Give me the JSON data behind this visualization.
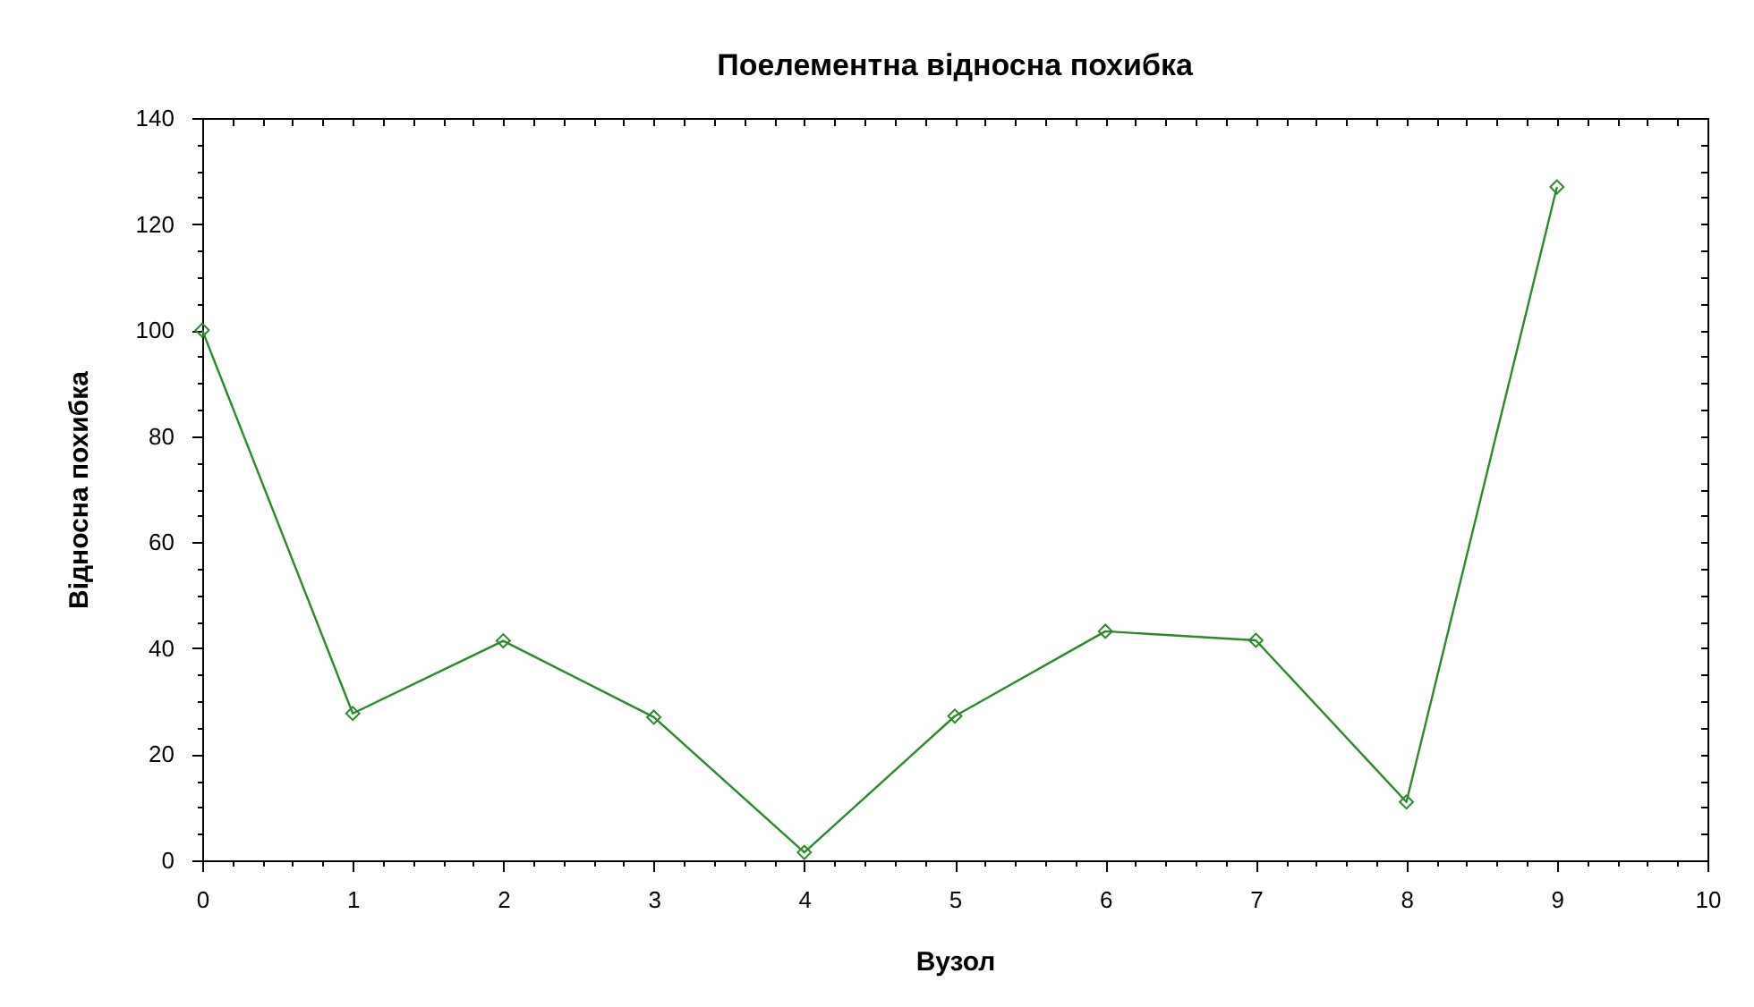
{
  "chart_data": {
    "type": "line",
    "title": "Поелементна відносна похибка",
    "xlabel": "Вузол",
    "ylabel": "Відносна похибка",
    "x": [
      0,
      1,
      2,
      3,
      4,
      5,
      6,
      7,
      8,
      9
    ],
    "values": [
      100,
      27.7,
      41.4,
      27,
      1.5,
      27.2,
      43.2,
      41.5,
      11,
      127
    ],
    "color": "#2a8a2a",
    "marker": "diamond",
    "line_style": "solid",
    "grid": false,
    "xlim": [
      0,
      10
    ],
    "ylim": [
      0,
      140
    ],
    "xticks": [
      0,
      {
        "value": 0.2,
        "label": null
      },
      {
        "value": 0.4,
        "label": null
      },
      {
        "value": 0.6,
        "label": null
      },
      {
        "value": 0.8,
        "label": null
      },
      1,
      {
        "value": 1.2,
        "label": null
      },
      {
        "value": 1.4,
        "label": null
      },
      {
        "value": 1.6,
        "label": null
      },
      {
        "value": 1.8,
        "label": null
      },
      2,
      {
        "value": 2.2,
        "label": null
      },
      {
        "value": 2.4,
        "label": null
      },
      {
        "value": 2.6,
        "label": null
      },
      {
        "value": 2.8,
        "label": null
      },
      3,
      {
        "value": 3.2,
        "label": null
      },
      {
        "value": 3.4,
        "label": null
      },
      {
        "value": 3.6,
        "label": null
      },
      {
        "value": 3.8,
        "label": null
      },
      4,
      {
        "value": 4.2,
        "label": null
      },
      {
        "value": 4.4,
        "label": null
      },
      {
        "value": 4.6,
        "label": null
      },
      {
        "value": 4.8,
        "label": null
      },
      5,
      {
        "value": 5.2,
        "label": null
      },
      {
        "value": 5.4,
        "label": null
      },
      {
        "value": 5.6,
        "label": null
      },
      {
        "value": 5.8,
        "label": null
      },
      6,
      {
        "value": 6.2,
        "label": null
      },
      {
        "value": 6.4,
        "label": null
      },
      {
        "value": 6.6,
        "label": null
      },
      {
        "value": 6.8,
        "label": null
      },
      7,
      {
        "value": 7.2,
        "label": null
      },
      {
        "value": 7.4,
        "label": null
      },
      {
        "value": 7.6,
        "label": null
      },
      {
        "value": 7.8,
        "label": null
      },
      8,
      {
        "value": 8.2,
        "label": null
      },
      {
        "value": 8.4,
        "label": null
      },
      {
        "value": 8.6,
        "label": null
      },
      {
        "value": 8.8,
        "label": null
      },
      9,
      {
        "value": 9.2,
        "label": null
      },
      {
        "value": 9.4,
        "label": null
      },
      {
        "value": 9.6,
        "label": null
      },
      {
        "value": 9.8,
        "label": null
      },
      10
    ],
    "yticks": [
      0,
      {
        "value": 5,
        "label": null
      },
      {
        "value": 10,
        "label": null
      },
      {
        "value": 15,
        "label": null
      },
      20,
      {
        "value": 25,
        "label": null
      },
      {
        "value": 30,
        "label": null
      },
      {
        "value": 35,
        "label": null
      },
      40,
      {
        "value": 45,
        "label": null
      },
      {
        "value": 50,
        "label": null
      },
      {
        "value": 55,
        "label": null
      },
      60,
      {
        "value": 65,
        "label": null
      },
      {
        "value": 70,
        "label": null
      },
      {
        "value": 75,
        "label": null
      },
      80,
      {
        "value": 85,
        "label": null
      },
      {
        "value": 90,
        "label": null
      },
      {
        "value": 95,
        "label": null
      },
      100,
      {
        "value": 105,
        "label": null
      },
      {
        "value": 110,
        "label": null
      },
      {
        "value": 115,
        "label": null
      },
      120,
      {
        "value": 125,
        "label": null
      },
      {
        "value": 130,
        "label": null
      },
      {
        "value": 135,
        "label": null
      },
      140
    ]
  }
}
